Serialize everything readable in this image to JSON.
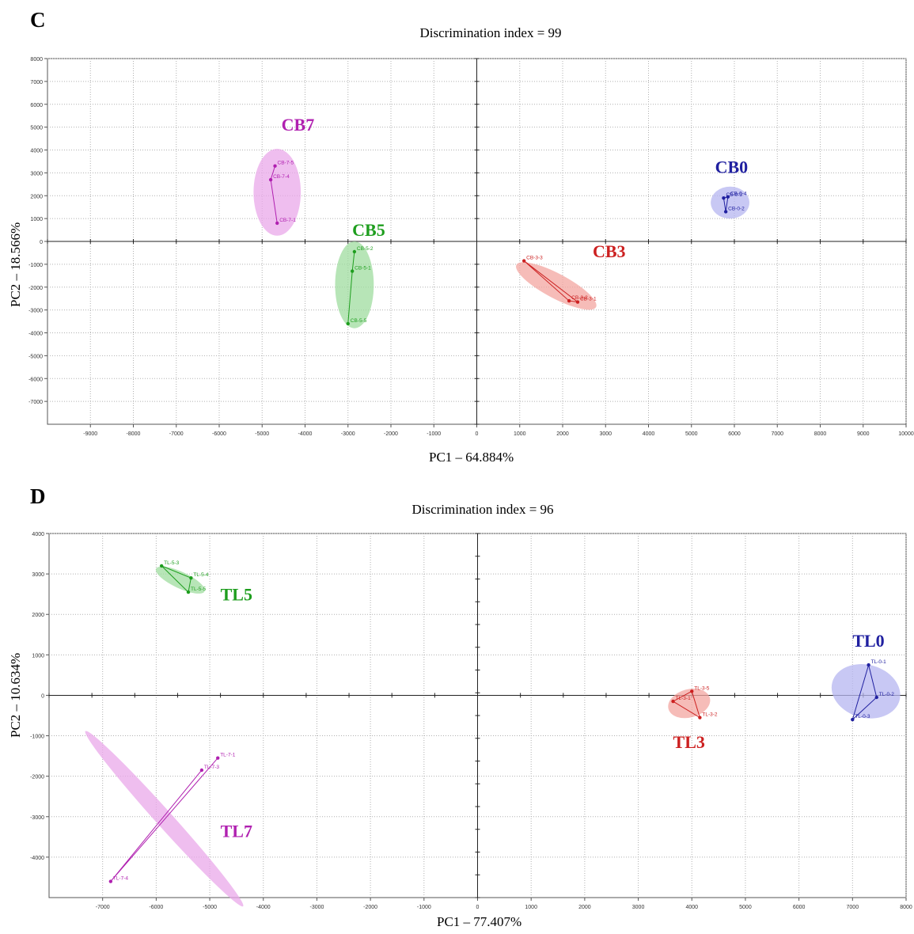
{
  "panels": [
    {
      "letter": "C",
      "title": "Discrimination index = 99",
      "xlabel": "PC1 – 64.884%",
      "ylabel": "PC2 – 18.566%",
      "chart_data": {
        "type": "scatter",
        "title": "Discrimination index = 99",
        "xlabel": "PC1 – 64.884%",
        "ylabel": "PC2 – 18.566%",
        "xlim": [
          -10000,
          10000
        ],
        "ylim": [
          -8000,
          8000
        ],
        "xticks": [
          -9000,
          -8000,
          -7000,
          -6000,
          -5000,
          -4000,
          -3000,
          -2000,
          -1000,
          0,
          1000,
          2000,
          3000,
          4000,
          5000,
          6000,
          7000,
          8000,
          9000,
          10000
        ],
        "yticks": [
          8000,
          7000,
          6000,
          5000,
          4000,
          3000,
          2000,
          1000,
          0,
          -1000,
          -2000,
          -3000,
          -4000,
          -5000,
          -6000,
          -7000
        ],
        "grid": true,
        "groups": [
          {
            "name": "CB7",
            "color": "#b020b0",
            "fill": "#e9a8e9",
            "label_pos": [
              -4550,
              4850
            ],
            "ellipse": {
              "cx": -4650,
              "cy": 2150,
              "rx": 550,
              "ry": 1900,
              "rot": 0
            },
            "points": [
              {
                "label": "CB-7-5",
                "x": -4700,
                "y": 3300
              },
              {
                "label": "CB-7-4",
                "x": -4800,
                "y": 2700
              },
              {
                "label": "CB-7-1",
                "x": -4650,
                "y": 800
              }
            ],
            "path": [
              0,
              1,
              2
            ]
          },
          {
            "name": "CB5",
            "color": "#1e9e1e",
            "fill": "#9fdc9f",
            "label_pos": [
              -2900,
              250
            ],
            "ellipse": {
              "cx": -2850,
              "cy": -1900,
              "rx": 450,
              "ry": 1900,
              "rot": 0
            },
            "points": [
              {
                "label": "CB-5-2",
                "x": -2850,
                "y": -450
              },
              {
                "label": "CB-5-1",
                "x": -2900,
                "y": -1300
              },
              {
                "label": "CB-5-5",
                "x": -3000,
                "y": -3600
              }
            ],
            "path": [
              0,
              1,
              2
            ]
          },
          {
            "name": "CB3",
            "color": "#cc2020",
            "fill": "#f3a6a0",
            "label_pos": [
              2700,
              -700
            ],
            "ellipse": {
              "cx": 1850,
              "cy": -1950,
              "rx": 1050,
              "ry": 520,
              "rot": 28
            },
            "points": [
              {
                "label": "CB-3-3",
                "x": 1100,
                "y": -850
              },
              {
                "label": "CB-3-2",
                "x": 2150,
                "y": -2600
              },
              {
                "label": "CB-3-1",
                "x": 2350,
                "y": -2650
              }
            ],
            "path": [
              0,
              1,
              2,
              0
            ]
          },
          {
            "name": "CB0",
            "color": "#2020a0",
            "fill": "#b5b5f0",
            "label_pos": [
              5550,
              3000
            ],
            "ellipse": {
              "cx": 5900,
              "cy": 1700,
              "rx": 450,
              "ry": 700,
              "rot": 0
            },
            "points": [
              {
                "label": "CB-0-3",
                "x": 5750,
                "y": 1900
              },
              {
                "label": "CB-0-4",
                "x": 5850,
                "y": 1950
              },
              {
                "label": "CB-0-2",
                "x": 5800,
                "y": 1300
              }
            ],
            "path": [
              0,
              1,
              2,
              0
            ]
          }
        ]
      }
    },
    {
      "letter": "D",
      "title": "Discrimination index = 96",
      "xlabel": "PC1 – 77.407%",
      "ylabel": "PC2 – 10.634%",
      "chart_data": {
        "type": "scatter",
        "title": "Discrimination index = 96",
        "xlabel": "PC1 – 77.407%",
        "ylabel": "PC2 – 10.634%",
        "xlim": [
          -8000,
          8000
        ],
        "ylim": [
          -5000,
          4000
        ],
        "xticks": [
          -7000,
          -6000,
          -5000,
          -4000,
          -3000,
          -2000,
          -1000,
          0,
          1000,
          2000,
          3000,
          4000,
          5000,
          6000,
          7000,
          8000
        ],
        "yticks": [
          4000,
          3000,
          2000,
          1000,
          0,
          -1000,
          -2000,
          -3000,
          -4000
        ],
        "grid": true,
        "groups": [
          {
            "name": "TL5",
            "color": "#1e9e1e",
            "fill": "#9fdc9f",
            "label_pos": [
              -4800,
              2350
            ],
            "ellipse": {
              "cx": -5550,
              "cy": 2850,
              "rx": 500,
              "ry": 280,
              "rot": 25
            },
            "points": [
              {
                "label": "TL-5-3",
                "x": -5900,
                "y": 3200
              },
              {
                "label": "TL-5-4",
                "x": -5350,
                "y": 2900
              },
              {
                "label": "TL-5-5",
                "x": -5400,
                "y": 2550
              }
            ],
            "path": [
              0,
              1,
              2,
              0
            ]
          },
          {
            "name": "TL7",
            "color": "#b020b0",
            "fill": "#e9a8e9",
            "label_pos": [
              -4800,
              -3500
            ],
            "ellipse": {
              "cx": -5850,
              "cy": -3050,
              "rx": 2200,
              "ry": 280,
              "rot": 48
            },
            "points": [
              {
                "label": "TL-7-1",
                "x": -4850,
                "y": -1550
              },
              {
                "label": "TL-7-3",
                "x": -5150,
                "y": -1850
              },
              {
                "label": "TL-7-4",
                "x": -6850,
                "y": -4600
              }
            ],
            "path": [
              0,
              2,
              1
            ]
          },
          {
            "name": "TL3",
            "color": "#cc2020",
            "fill": "#f3a6a0",
            "label_pos": [
              3650,
              -1300
            ],
            "ellipse": {
              "cx": 3950,
              "cy": -200,
              "rx": 400,
              "ry": 480,
              "rot": -15
            },
            "points": [
              {
                "label": "TL-3-5",
                "x": 4000,
                "y": 100
              },
              {
                "label": "TL-3-1",
                "x": 3650,
                "y": -150
              },
              {
                "label": "TL-3-2",
                "x": 4150,
                "y": -550
              }
            ],
            "path": [
              0,
              1,
              2,
              0
            ]
          },
          {
            "name": "TL0",
            "color": "#2020a0",
            "fill": "#b5b5f0",
            "label_pos": [
              7000,
              1200
            ],
            "ellipse": {
              "cx": 7250,
              "cy": 100,
              "rx": 650,
              "ry": 900,
              "rot": 15
            },
            "points": [
              {
                "label": "TL-0-1",
                "x": 7300,
                "y": 750
              },
              {
                "label": "TL-0-2",
                "x": 7450,
                "y": -50
              },
              {
                "label": "TL-0-3",
                "x": 7000,
                "y": -600
              }
            ],
            "path": [
              0,
              1,
              2,
              0
            ]
          }
        ]
      }
    }
  ]
}
